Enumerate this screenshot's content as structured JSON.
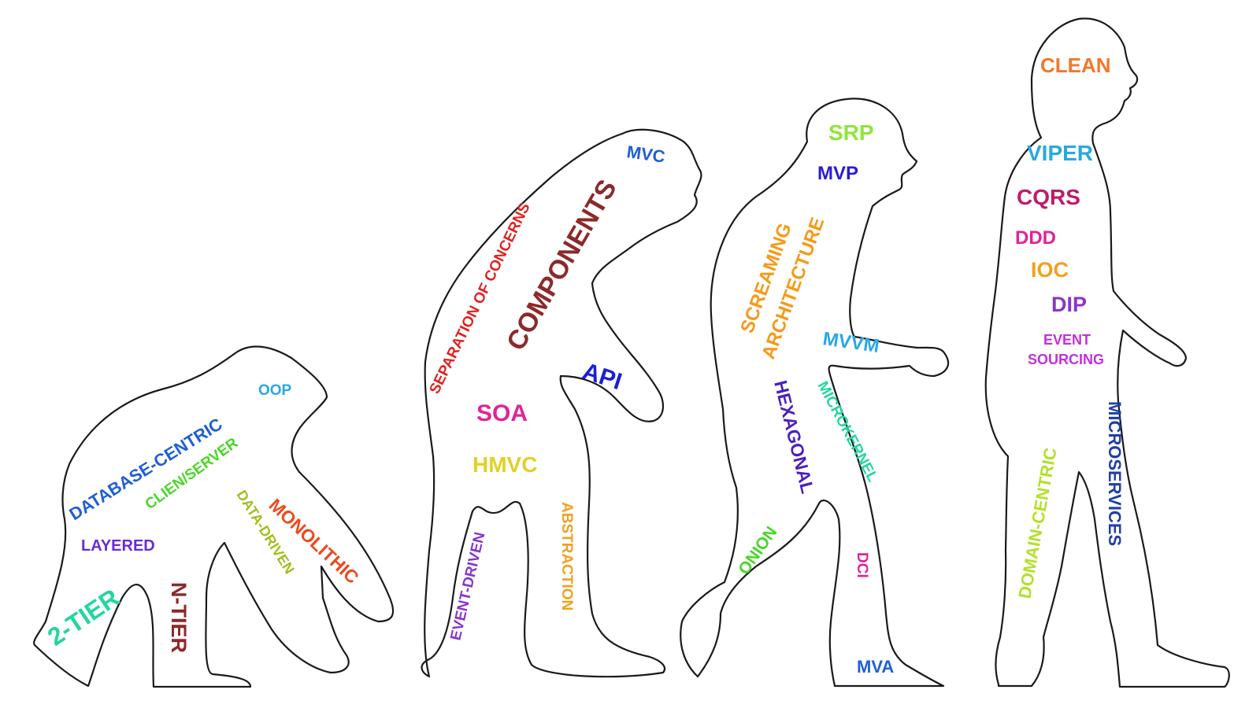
{
  "figures": [
    {
      "name": "ape",
      "labels": [
        {
          "id": "database-centric",
          "text": "DATABASE-CENTRIC",
          "color": "#1e5fd6"
        },
        {
          "id": "oop",
          "text": "OOP",
          "color": "#29a8e0"
        },
        {
          "id": "clien-server",
          "text": "CLIEN/SERVER",
          "color": "#49d629"
        },
        {
          "id": "layered",
          "text": "LAYERED",
          "color": "#6a2bd6"
        },
        {
          "id": "data-driven",
          "text": "DATA-DRIVEN",
          "color": "#9fbf1a"
        },
        {
          "id": "monolithic",
          "text": "MONOLITHIC",
          "color": "#ea4b1f"
        },
        {
          "id": "2-tier",
          "text": "2-TIER",
          "color": "#23d6a0"
        },
        {
          "id": "n-tier",
          "text": "N-TIER",
          "color": "#8b2a2a"
        }
      ]
    },
    {
      "name": "early-hominid",
      "labels": [
        {
          "id": "mvc",
          "text": "MVC",
          "color": "#1e5fd6"
        },
        {
          "id": "separation-of-concerns",
          "text": "SEPARATION OF CONCERNS",
          "color": "#e0231f"
        },
        {
          "id": "components",
          "text": "COMPONENTS",
          "color": "#8b2a2a"
        },
        {
          "id": "api",
          "text": "API",
          "color": "#1a1fd6"
        },
        {
          "id": "soa",
          "text": "SOA",
          "color": "#e0239a"
        },
        {
          "id": "hmvc",
          "text": "HMVC",
          "color": "#e3d024"
        },
        {
          "id": "event-driven",
          "text": "EVENT-DRIVEN",
          "color": "#8a35c9"
        },
        {
          "id": "abstraction",
          "text": "ABSTRACTION",
          "color": "#f2a020"
        }
      ]
    },
    {
      "name": "hominid",
      "labels": [
        {
          "id": "srp",
          "text": "SRP",
          "color": "#8ee63a"
        },
        {
          "id": "mvp",
          "text": "MVP",
          "color": "#2a1ad6"
        },
        {
          "id": "screaming-architecture-1",
          "text": "SCREAMING",
          "color": "#f59a1a"
        },
        {
          "id": "screaming-architecture-2",
          "text": "ARCHITECTURE",
          "color": "#f59a1a"
        },
        {
          "id": "mvvm",
          "text": "MVVM",
          "color": "#29a8e0"
        },
        {
          "id": "hexagonal",
          "text": "HEXAGONAL",
          "color": "#4b1fc0"
        },
        {
          "id": "microkernel",
          "text": "MICROKERNEL",
          "color": "#23d6a0"
        },
        {
          "id": "onion",
          "text": "ONION",
          "color": "#49d629"
        },
        {
          "id": "dci",
          "text": "DCI",
          "color": "#e0239a"
        },
        {
          "id": "mva",
          "text": "MVA",
          "color": "#1e5fd6"
        }
      ]
    },
    {
      "name": "human",
      "labels": [
        {
          "id": "clean",
          "text": "CLEAN",
          "color": "#f2782a"
        },
        {
          "id": "viper",
          "text": "VIPER",
          "color": "#29a8e0"
        },
        {
          "id": "cqrs",
          "text": "CQRS",
          "color": "#c0196a"
        },
        {
          "id": "ddd",
          "text": "DDD",
          "color": "#e0239a"
        },
        {
          "id": "ioc",
          "text": "IOC",
          "color": "#f2a020"
        },
        {
          "id": "dip",
          "text": "DIP",
          "color": "#8a35c9"
        },
        {
          "id": "event-sourcing-1",
          "text": "EVENT",
          "color": "#c42ee0"
        },
        {
          "id": "event-sourcing-2",
          "text": "SOURCING",
          "color": "#c42ee0"
        },
        {
          "id": "domain-centric",
          "text": "DOMAIN-CENTRIC",
          "color": "#b3e02a"
        },
        {
          "id": "microservices",
          "text": "MICROSERVICES",
          "color": "#1e3fa8"
        }
      ]
    }
  ]
}
